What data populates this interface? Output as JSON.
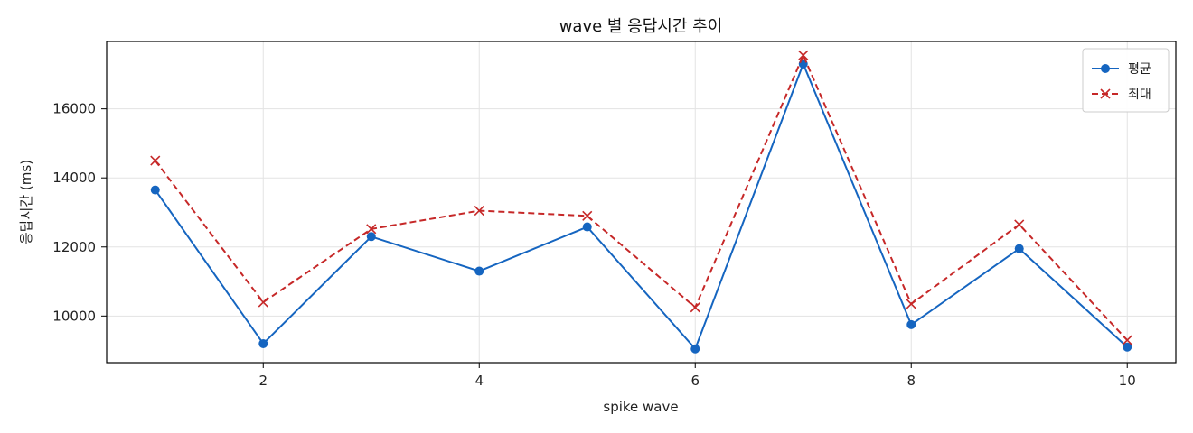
{
  "chart_data": {
    "type": "line",
    "title": "wave 별 응답시간 추이",
    "xlabel": "spike wave",
    "ylabel": "응답시간 (ms)",
    "x": [
      1,
      2,
      3,
      4,
      5,
      6,
      7,
      8,
      9,
      10
    ],
    "xticks": [
      2,
      4,
      6,
      8,
      10
    ],
    "yticks": [
      10000,
      12000,
      14000,
      16000
    ],
    "xlim": [
      0.55,
      10.45
    ],
    "ylim": [
      8650,
      17950
    ],
    "grid": true,
    "legend_position": "top-right",
    "series": [
      {
        "name": "평균",
        "values": [
          13650,
          9200,
          12300,
          11300,
          12580,
          9050,
          17300,
          9750,
          11950,
          9100
        ],
        "color": "#1565c0",
        "line_style": "solid",
        "marker": "circle"
      },
      {
        "name": "최대",
        "values": [
          14500,
          10400,
          12520,
          13050,
          12900,
          10250,
          17550,
          10350,
          12650,
          9300
        ],
        "color": "#c62828",
        "line_style": "dashed",
        "marker": "x"
      }
    ]
  }
}
